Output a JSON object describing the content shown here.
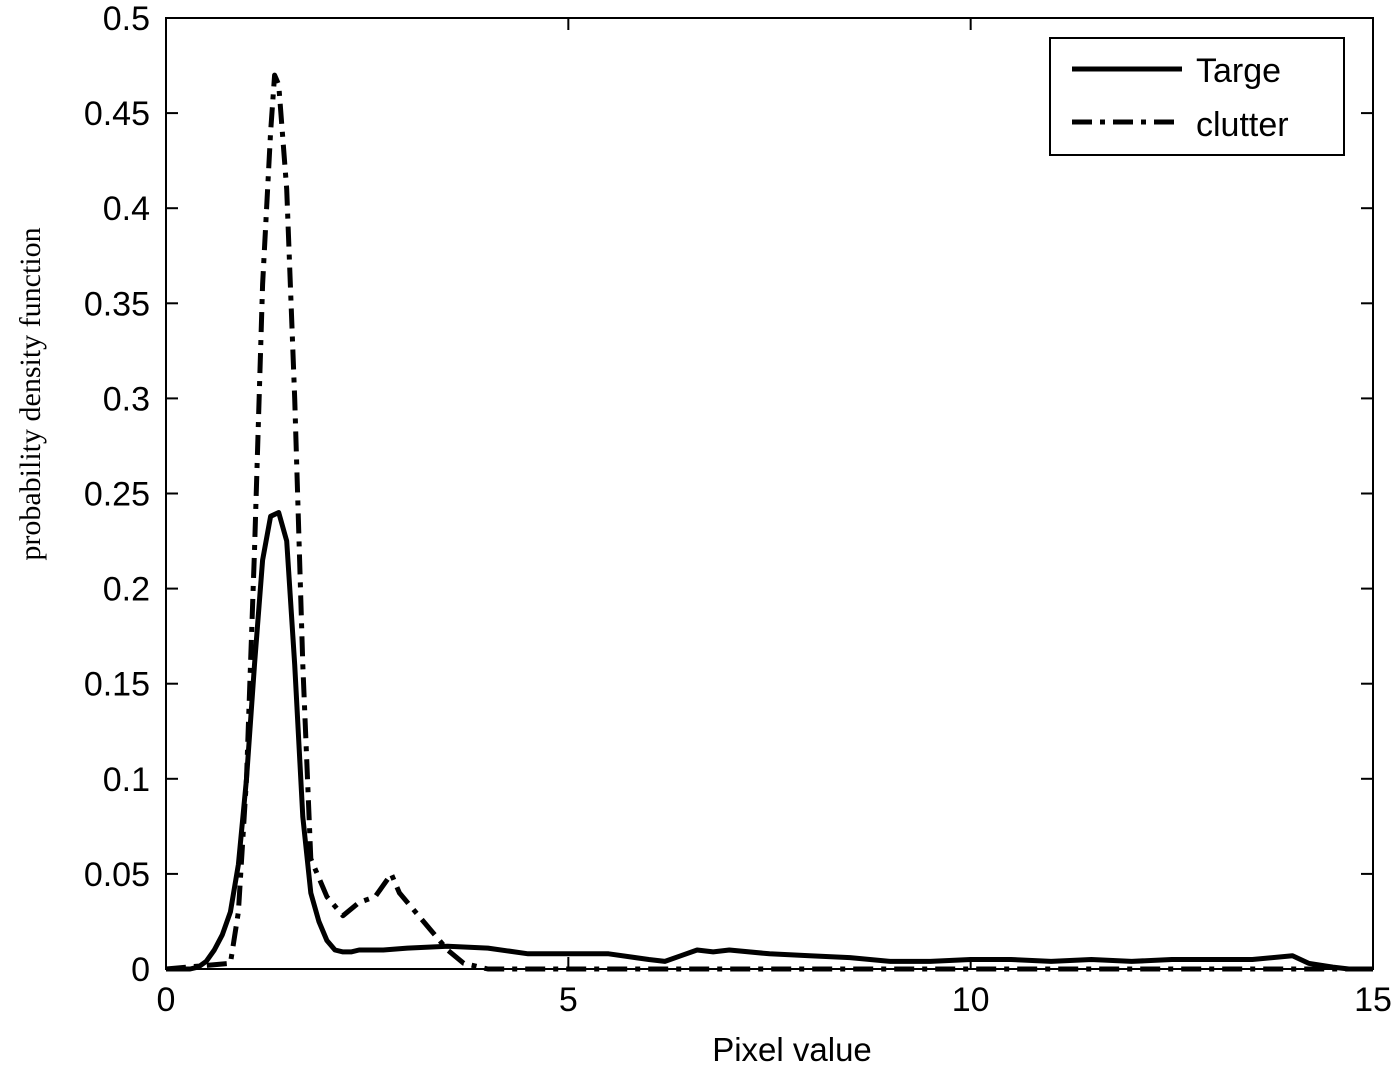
{
  "chart_data": {
    "type": "line",
    "title": "",
    "xlabel": "Pixel value",
    "ylabel": "probability density function",
    "xlim": [
      0,
      15
    ],
    "ylim": [
      0,
      0.5
    ],
    "xticks": [
      0,
      5,
      10,
      15
    ],
    "yticks": [
      0,
      0.05,
      0.1,
      0.15,
      0.2,
      0.25,
      0.3,
      0.35,
      0.4,
      0.45,
      0.5
    ],
    "xtick_labels": [
      "0",
      "5",
      "10",
      "15"
    ],
    "ytick_labels": [
      "0",
      "0.05",
      "0.1",
      "0.15",
      "0.2",
      "0.25",
      "0.3",
      "0.35",
      "0.4",
      "0.45",
      "0.5"
    ],
    "grid": false,
    "legend_position": "top-right",
    "series": [
      {
        "name": "Targe",
        "style": "solid",
        "color": "#000000",
        "x": [
          0,
          0.3,
          0.4,
          0.5,
          0.6,
          0.7,
          0.8,
          0.9,
          1.0,
          1.1,
          1.2,
          1.3,
          1.4,
          1.5,
          1.6,
          1.7,
          1.8,
          1.9,
          2.0,
          2.1,
          2.2,
          2.3,
          2.4,
          2.5,
          2.6,
          2.7,
          3.0,
          3.5,
          4.0,
          4.5,
          5.0,
          5.5,
          6.0,
          6.2,
          6.4,
          6.6,
          6.8,
          7.0,
          7.5,
          8.0,
          8.5,
          9.0,
          9.5,
          10.0,
          10.5,
          11.0,
          11.5,
          12.0,
          12.5,
          13.0,
          13.5,
          14.0,
          14.2,
          14.5,
          14.7,
          15.0
        ],
        "y": [
          0,
          0,
          0.001,
          0.004,
          0.01,
          0.018,
          0.03,
          0.055,
          0.1,
          0.16,
          0.215,
          0.238,
          0.24,
          0.225,
          0.16,
          0.08,
          0.04,
          0.025,
          0.015,
          0.01,
          0.009,
          0.009,
          0.01,
          0.01,
          0.01,
          0.01,
          0.011,
          0.012,
          0.011,
          0.008,
          0.008,
          0.008,
          0.005,
          0.004,
          0.007,
          0.01,
          0.009,
          0.01,
          0.008,
          0.007,
          0.006,
          0.004,
          0.004,
          0.005,
          0.005,
          0.004,
          0.005,
          0.004,
          0.005,
          0.005,
          0.005,
          0.007,
          0.003,
          0.001,
          0,
          0
        ]
      },
      {
        "name": "clutter",
        "style": "dashdot",
        "color": "#000000",
        "x": [
          0,
          0.8,
          0.9,
          1.0,
          1.1,
          1.2,
          1.3,
          1.35,
          1.4,
          1.5,
          1.6,
          1.7,
          1.8,
          2.0,
          2.2,
          2.4,
          2.6,
          2.8,
          2.9,
          3.1,
          3.3,
          3.5,
          3.7,
          4.0,
          4.3,
          5.0,
          15.0
        ],
        "y": [
          0,
          0.003,
          0.03,
          0.1,
          0.22,
          0.36,
          0.44,
          0.47,
          0.465,
          0.41,
          0.3,
          0.16,
          0.058,
          0.038,
          0.028,
          0.035,
          0.038,
          0.05,
          0.04,
          0.03,
          0.02,
          0.01,
          0.003,
          0,
          0,
          0,
          0
        ]
      }
    ]
  }
}
